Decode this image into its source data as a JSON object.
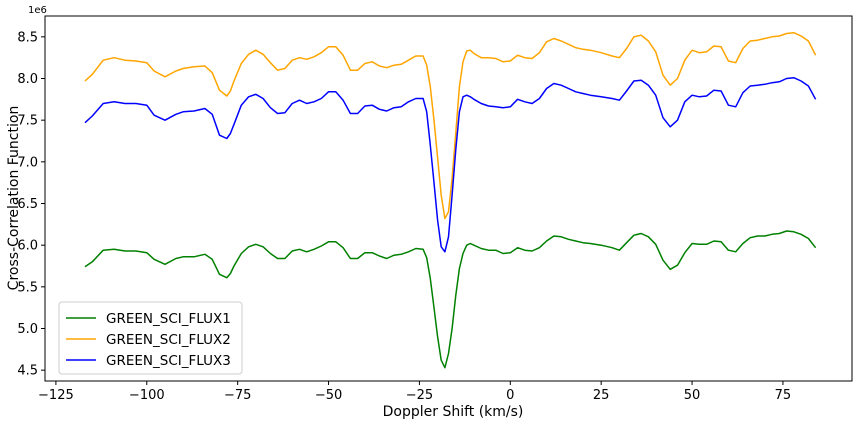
{
  "chart_data": {
    "type": "line",
    "xlabel": "Doppler Shift (km/s)",
    "ylabel": "Cross-Correlation Function",
    "y_offset_label": "1e6",
    "y_multiplier": 1000000,
    "xlim": [
      -128,
      94
    ],
    "ylim": [
      4.37,
      8.75
    ],
    "x_ticks": [
      -125,
      -100,
      -75,
      -50,
      -25,
      0,
      25,
      50,
      75
    ],
    "x_tick_labels": [
      "−125",
      "−100",
      "−75",
      "−50",
      "−25",
      "0",
      "25",
      "50",
      "75"
    ],
    "y_ticks": [
      4.5,
      5.0,
      5.5,
      6.0,
      6.5,
      7.0,
      7.5,
      8.0,
      8.5
    ],
    "y_tick_labels": [
      "4.5",
      "5.0",
      "5.5",
      "6.0",
      "6.5",
      "7.0",
      "7.5",
      "8.0",
      "8.5"
    ],
    "grid": false,
    "legend_position": "lower-left",
    "x": [
      -117,
      -115,
      -112,
      -109,
      -106,
      -103,
      -100,
      -98,
      -95,
      -92,
      -90,
      -87,
      -84,
      -82,
      -80,
      -78,
      -77,
      -76,
      -74,
      -72,
      -70,
      -68,
      -66,
      -64,
      -62,
      -60,
      -58,
      -56,
      -54,
      -52,
      -50,
      -48,
      -46,
      -44,
      -42,
      -40,
      -38,
      -36,
      -34,
      -32,
      -30,
      -28,
      -26,
      -24,
      -23,
      -22,
      -21,
      -20,
      -19,
      -18,
      -17,
      -16,
      -15,
      -14,
      -13,
      -12,
      -11,
      -10,
      -8,
      -6,
      -4,
      -2,
      0,
      2,
      4,
      6,
      8,
      10,
      12,
      14,
      16,
      18,
      20,
      22,
      25,
      28,
      30,
      32,
      34,
      36,
      38,
      40,
      42,
      44,
      46,
      48,
      50,
      52,
      54,
      56,
      58,
      60,
      62,
      64,
      66,
      68,
      70,
      72,
      74,
      76,
      78,
      80,
      82,
      84
    ],
    "series": [
      {
        "name": "GREEN_SCI_FLUX1",
        "color": "#008000",
        "values": [
          5.74,
          5.8,
          5.94,
          5.95,
          5.93,
          5.93,
          5.91,
          5.83,
          5.77,
          5.84,
          5.86,
          5.86,
          5.89,
          5.83,
          5.65,
          5.61,
          5.66,
          5.75,
          5.9,
          5.98,
          6.01,
          5.98,
          5.9,
          5.84,
          5.84,
          5.93,
          5.95,
          5.92,
          5.95,
          5.99,
          6.04,
          6.04,
          5.97,
          5.84,
          5.84,
          5.91,
          5.91,
          5.87,
          5.84,
          5.88,
          5.89,
          5.92,
          5.96,
          5.95,
          5.85,
          5.6,
          5.25,
          4.9,
          4.62,
          4.53,
          4.7,
          5.0,
          5.4,
          5.72,
          5.9,
          6.0,
          6.02,
          6.0,
          5.96,
          5.94,
          5.94,
          5.9,
          5.91,
          5.97,
          5.94,
          5.93,
          5.97,
          6.05,
          6.11,
          6.1,
          6.07,
          6.05,
          6.03,
          6.02,
          6.0,
          5.97,
          5.94,
          6.03,
          6.12,
          6.14,
          6.1,
          6.01,
          5.82,
          5.71,
          5.76,
          5.91,
          6.02,
          6.01,
          6.01,
          6.05,
          6.04,
          5.94,
          5.92,
          6.02,
          6.09,
          6.11,
          6.11,
          6.13,
          6.14,
          6.17,
          6.16,
          6.13,
          6.08,
          5.97
        ]
      },
      {
        "name": "GREEN_SCI_FLUX2",
        "color": "#ffa500",
        "values": [
          7.97,
          8.05,
          8.22,
          8.25,
          8.22,
          8.21,
          8.19,
          8.09,
          8.02,
          8.09,
          8.12,
          8.14,
          8.15,
          8.07,
          7.86,
          7.79,
          7.85,
          7.97,
          8.18,
          8.29,
          8.34,
          8.29,
          8.19,
          8.1,
          8.12,
          8.22,
          8.25,
          8.23,
          8.26,
          8.31,
          8.38,
          8.38,
          8.28,
          8.1,
          8.1,
          8.18,
          8.2,
          8.15,
          8.13,
          8.16,
          8.17,
          8.22,
          8.27,
          8.27,
          8.16,
          7.9,
          7.5,
          7.05,
          6.6,
          6.32,
          6.4,
          6.8,
          7.35,
          7.9,
          8.2,
          8.33,
          8.34,
          8.3,
          8.25,
          8.25,
          8.24,
          8.2,
          8.21,
          8.28,
          8.25,
          8.24,
          8.31,
          8.44,
          8.48,
          8.45,
          8.41,
          8.37,
          8.35,
          8.34,
          8.31,
          8.27,
          8.25,
          8.36,
          8.5,
          8.52,
          8.45,
          8.32,
          8.04,
          7.92,
          8.0,
          8.22,
          8.34,
          8.31,
          8.32,
          8.39,
          8.38,
          8.21,
          8.19,
          8.36,
          8.45,
          8.46,
          8.48,
          8.5,
          8.51,
          8.54,
          8.55,
          8.51,
          8.45,
          8.28
        ]
      },
      {
        "name": "GREEN_SCI_FLUX3",
        "color": "#0000ff",
        "values": [
          7.47,
          7.55,
          7.7,
          7.72,
          7.7,
          7.7,
          7.68,
          7.56,
          7.5,
          7.57,
          7.6,
          7.61,
          7.64,
          7.57,
          7.32,
          7.28,
          7.34,
          7.45,
          7.68,
          7.78,
          7.81,
          7.76,
          7.65,
          7.58,
          7.59,
          7.7,
          7.74,
          7.7,
          7.72,
          7.76,
          7.84,
          7.84,
          7.74,
          7.58,
          7.58,
          7.67,
          7.68,
          7.63,
          7.61,
          7.65,
          7.66,
          7.72,
          7.76,
          7.76,
          7.6,
          7.2,
          6.75,
          6.3,
          5.98,
          5.92,
          6.1,
          6.6,
          7.15,
          7.6,
          7.78,
          7.8,
          7.78,
          7.75,
          7.7,
          7.67,
          7.66,
          7.65,
          7.66,
          7.75,
          7.72,
          7.7,
          7.76,
          7.88,
          7.94,
          7.92,
          7.88,
          7.84,
          7.82,
          7.8,
          7.78,
          7.76,
          7.74,
          7.85,
          7.97,
          7.98,
          7.92,
          7.8,
          7.53,
          7.42,
          7.5,
          7.72,
          7.8,
          7.78,
          7.79,
          7.86,
          7.85,
          7.68,
          7.66,
          7.83,
          7.91,
          7.92,
          7.93,
          7.95,
          7.96,
          8.0,
          8.01,
          7.97,
          7.91,
          7.75
        ]
      }
    ]
  }
}
